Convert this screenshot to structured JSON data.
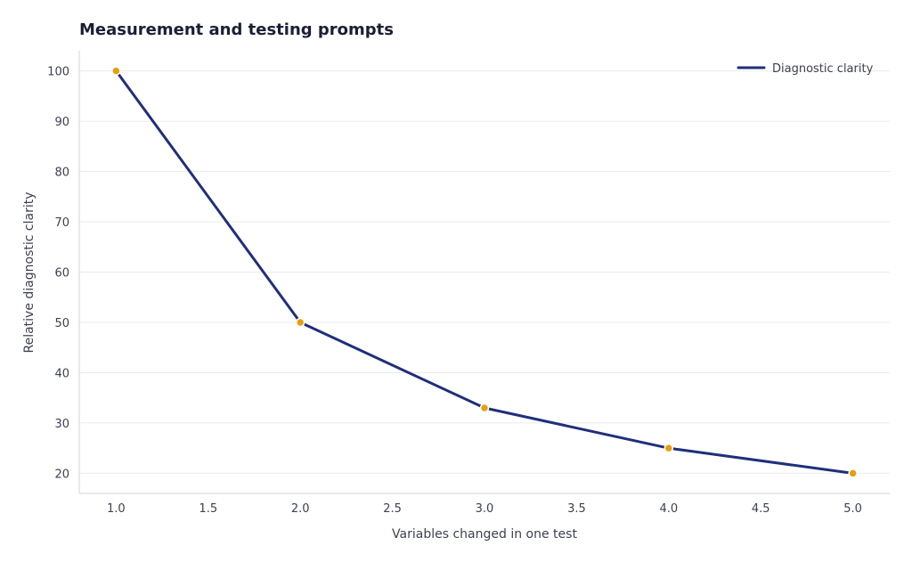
{
  "colors": {
    "line": "#1f2f7a",
    "marker": "#e69f0c",
    "grid": "#ebebeb",
    "axis": "#d6d6d6",
    "text": "#3d4150",
    "title": "#1a1f36"
  },
  "chart_data": {
    "type": "line",
    "title": "Measurement and testing prompts",
    "xlabel": "Variables changed in one test",
    "ylabel": "Relative diagnostic clarity",
    "xlim": [
      0.8,
      5.2
    ],
    "ylim": [
      16,
      104
    ],
    "x_ticks": [
      "1.0",
      "1.5",
      "2.0",
      "2.5",
      "3.0",
      "3.5",
      "4.0",
      "4.5",
      "5.0"
    ],
    "y_ticks": [
      "20",
      "30",
      "40",
      "50",
      "60",
      "70",
      "80",
      "90",
      "100"
    ],
    "grid": "horizontal",
    "legend_position": "top-right",
    "series": [
      {
        "name": "Diagnostic clarity",
        "x": [
          1,
          2,
          3,
          4,
          5
        ],
        "values": [
          100,
          50,
          33,
          25,
          20
        ]
      }
    ]
  }
}
